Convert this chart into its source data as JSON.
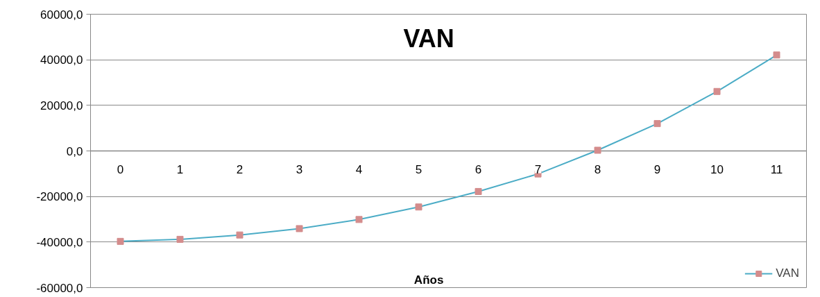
{
  "chart_data": {
    "type": "line",
    "title": "VAN",
    "xlabel": "Años",
    "categories": [
      "0",
      "1",
      "2",
      "3",
      "4",
      "5",
      "6",
      "7",
      "8",
      "9",
      "10",
      "11"
    ],
    "series": [
      {
        "name": "VAN",
        "color": "#4bacc6",
        "colors": [
          "#d48c8c",
          "#d48c8c",
          "#d48c8c",
          "#d48c8c",
          "#d48c8c",
          "#d48c8c",
          "#d48c8c",
          "#d48c8c",
          "#d48c8c",
          "#d48c8c",
          "#d48c8c",
          "#d48c8c"
        ],
        "values": [
          -39700,
          -38800,
          -36900,
          -34100,
          -30100,
          -24600,
          -17800,
          -10100,
          300,
          12000,
          26100,
          42100
        ]
      }
    ],
    "ylim": [
      -60000,
      60000
    ],
    "yticks": [
      {
        "value": -60000,
        "label": "-60000,0"
      },
      {
        "value": -40000,
        "label": "-40000,0"
      },
      {
        "value": -20000,
        "label": "-20000,0"
      },
      {
        "value": 0,
        "label": "0,0"
      },
      {
        "value": 20000,
        "label": "20000,0"
      },
      {
        "value": 40000,
        "label": "40000,0"
      },
      {
        "value": 60000,
        "label": "60000,0"
      }
    ],
    "grid": "y",
    "legend": "bottom right",
    "marker": "square",
    "line_style": "solid"
  }
}
